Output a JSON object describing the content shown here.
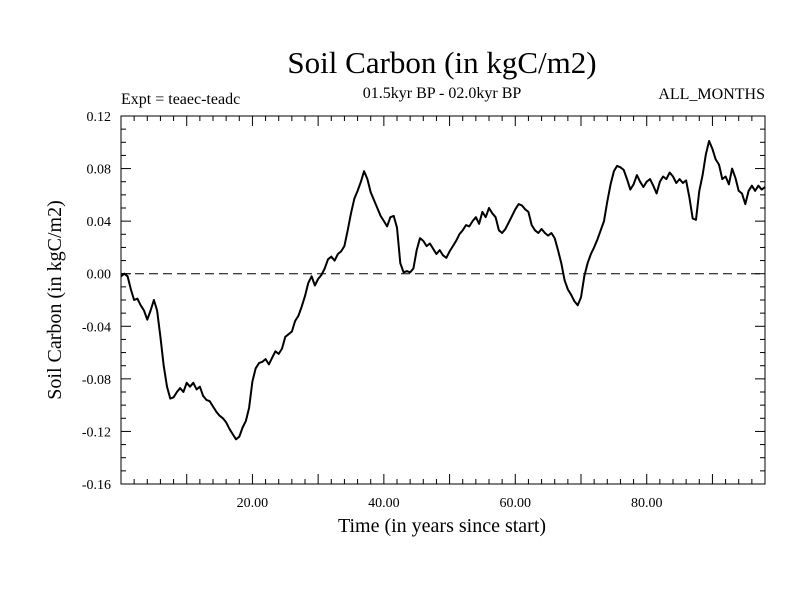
{
  "chart_data": {
    "type": "line",
    "title": "Soil Carbon (in kgC/m2)",
    "subtitle": "01.5kyr BP - 02.0kyr BP",
    "left_note": "Expt = teaec-teadc",
    "right_note": "ALL_MONTHS",
    "xlabel": "Time (in years since start)",
    "ylabel": "Soil Carbon (in kgC/m2)",
    "xlim": [
      0,
      98
    ],
    "ylim": [
      -0.16,
      0.12
    ],
    "x_ticks": [
      20,
      40,
      60,
      80
    ],
    "x_tick_labels": [
      "20.00",
      "40.00",
      "60.00",
      "80.00"
    ],
    "y_ticks": [
      -0.16,
      -0.12,
      -0.08,
      -0.04,
      0.0,
      0.04,
      0.08,
      0.12
    ],
    "y_tick_labels": [
      "-0.16",
      "-0.12",
      "-0.08",
      "-0.04",
      "0.00",
      "0.04",
      "0.08",
      "0.12"
    ],
    "reference_line": 0.0,
    "grid": false,
    "series": [
      {
        "color": "#000000",
        "points": [
          [
            0.0,
            -0.002
          ],
          [
            0.5,
            0.0
          ],
          [
            1.0,
            -0.002
          ],
          [
            1.5,
            -0.012
          ],
          [
            2.0,
            -0.02
          ],
          [
            2.5,
            -0.019
          ],
          [
            3.0,
            -0.024
          ],
          [
            3.5,
            -0.028
          ],
          [
            4.0,
            -0.035
          ],
          [
            4.5,
            -0.028
          ],
          [
            5.0,
            -0.02
          ],
          [
            5.5,
            -0.028
          ],
          [
            6.0,
            -0.048
          ],
          [
            6.5,
            -0.07
          ],
          [
            7.0,
            -0.086
          ],
          [
            7.5,
            -0.095
          ],
          [
            8.0,
            -0.094
          ],
          [
            8.5,
            -0.09
          ],
          [
            9.0,
            -0.087
          ],
          [
            9.5,
            -0.09
          ],
          [
            10.0,
            -0.083
          ],
          [
            10.5,
            -0.086
          ],
          [
            11.0,
            -0.083
          ],
          [
            11.5,
            -0.088
          ],
          [
            12.0,
            -0.086
          ],
          [
            12.5,
            -0.093
          ],
          [
            13.0,
            -0.096
          ],
          [
            13.5,
            -0.097
          ],
          [
            14.0,
            -0.101
          ],
          [
            14.5,
            -0.105
          ],
          [
            15.0,
            -0.108
          ],
          [
            15.5,
            -0.11
          ],
          [
            16.0,
            -0.113
          ],
          [
            16.5,
            -0.118
          ],
          [
            17.0,
            -0.122
          ],
          [
            17.5,
            -0.126
          ],
          [
            18.0,
            -0.124
          ],
          [
            18.5,
            -0.117
          ],
          [
            19.0,
            -0.112
          ],
          [
            19.5,
            -0.102
          ],
          [
            20.0,
            -0.082
          ],
          [
            20.5,
            -0.072
          ],
          [
            21.0,
            -0.068
          ],
          [
            21.5,
            -0.067
          ],
          [
            22.0,
            -0.065
          ],
          [
            22.5,
            -0.069
          ],
          [
            23.0,
            -0.064
          ],
          [
            23.5,
            -0.059
          ],
          [
            24.0,
            -0.061
          ],
          [
            24.5,
            -0.057
          ],
          [
            25.0,
            -0.048
          ],
          [
            25.5,
            -0.046
          ],
          [
            26.0,
            -0.044
          ],
          [
            26.5,
            -0.036
          ],
          [
            27.0,
            -0.032
          ],
          [
            27.5,
            -0.025
          ],
          [
            28.0,
            -0.017
          ],
          [
            28.5,
            -0.007
          ],
          [
            29.0,
            -0.002
          ],
          [
            29.5,
            -0.009
          ],
          [
            30.0,
            -0.004
          ],
          [
            30.5,
            -0.001
          ],
          [
            31.0,
            0.004
          ],
          [
            31.5,
            0.011
          ],
          [
            32.0,
            0.013
          ],
          [
            32.5,
            0.01
          ],
          [
            33.0,
            0.015
          ],
          [
            33.5,
            0.017
          ],
          [
            34.0,
            0.021
          ],
          [
            34.5,
            0.033
          ],
          [
            35.0,
            0.046
          ],
          [
            35.5,
            0.057
          ],
          [
            36.0,
            0.063
          ],
          [
            36.5,
            0.07
          ],
          [
            37.0,
            0.078
          ],
          [
            37.5,
            0.072
          ],
          [
            38.0,
            0.062
          ],
          [
            38.5,
            0.056
          ],
          [
            39.0,
            0.05
          ],
          [
            39.5,
            0.044
          ],
          [
            40.0,
            0.04
          ],
          [
            40.5,
            0.036
          ],
          [
            41.0,
            0.043
          ],
          [
            41.5,
            0.044
          ],
          [
            42.0,
            0.035
          ],
          [
            42.5,
            0.008
          ],
          [
            43.0,
            0.001
          ],
          [
            43.5,
            0.002
          ],
          [
            44.0,
            0.001
          ],
          [
            44.5,
            0.004
          ],
          [
            45.0,
            0.018
          ],
          [
            45.5,
            0.027
          ],
          [
            46.0,
            0.025
          ],
          [
            46.5,
            0.021
          ],
          [
            47.0,
            0.023
          ],
          [
            47.5,
            0.019
          ],
          [
            48.0,
            0.015
          ],
          [
            48.5,
            0.018
          ],
          [
            49.0,
            0.014
          ],
          [
            49.5,
            0.012
          ],
          [
            50.0,
            0.017
          ],
          [
            50.5,
            0.021
          ],
          [
            51.0,
            0.025
          ],
          [
            51.5,
            0.03
          ],
          [
            52.0,
            0.033
          ],
          [
            52.5,
            0.037
          ],
          [
            53.0,
            0.036
          ],
          [
            53.5,
            0.04
          ],
          [
            54.0,
            0.043
          ],
          [
            54.5,
            0.038
          ],
          [
            55.0,
            0.047
          ],
          [
            55.5,
            0.043
          ],
          [
            56.0,
            0.05
          ],
          [
            56.5,
            0.046
          ],
          [
            57.0,
            0.043
          ],
          [
            57.5,
            0.033
          ],
          [
            58.0,
            0.031
          ],
          [
            58.5,
            0.034
          ],
          [
            59.0,
            0.039
          ],
          [
            59.5,
            0.044
          ],
          [
            60.0,
            0.049
          ],
          [
            60.5,
            0.053
          ],
          [
            61.0,
            0.052
          ],
          [
            61.5,
            0.049
          ],
          [
            62.0,
            0.047
          ],
          [
            62.5,
            0.037
          ],
          [
            63.0,
            0.033
          ],
          [
            63.5,
            0.031
          ],
          [
            64.0,
            0.034
          ],
          [
            64.5,
            0.031
          ],
          [
            65.0,
            0.029
          ],
          [
            65.5,
            0.031
          ],
          [
            66.0,
            0.027
          ],
          [
            66.5,
            0.018
          ],
          [
            67.0,
            0.008
          ],
          [
            67.5,
            -0.005
          ],
          [
            68.0,
            -0.012
          ],
          [
            68.5,
            -0.016
          ],
          [
            69.0,
            -0.021
          ],
          [
            69.5,
            -0.024
          ],
          [
            70.0,
            -0.018
          ],
          [
            70.5,
            -0.002
          ],
          [
            71.0,
            0.008
          ],
          [
            71.5,
            0.015
          ],
          [
            72.0,
            0.02
          ],
          [
            72.5,
            0.026
          ],
          [
            73.0,
            0.033
          ],
          [
            73.5,
            0.04
          ],
          [
            74.0,
            0.055
          ],
          [
            74.5,
            0.068
          ],
          [
            75.0,
            0.078
          ],
          [
            75.5,
            0.082
          ],
          [
            76.0,
            0.081
          ],
          [
            76.5,
            0.079
          ],
          [
            77.0,
            0.072
          ],
          [
            77.5,
            0.064
          ],
          [
            78.0,
            0.068
          ],
          [
            78.5,
            0.075
          ],
          [
            79.0,
            0.07
          ],
          [
            79.5,
            0.066
          ],
          [
            80.0,
            0.07
          ],
          [
            80.5,
            0.072
          ],
          [
            81.0,
            0.067
          ],
          [
            81.5,
            0.061
          ],
          [
            82.0,
            0.07
          ],
          [
            82.5,
            0.074
          ],
          [
            83.0,
            0.072
          ],
          [
            83.5,
            0.077
          ],
          [
            84.0,
            0.074
          ],
          [
            84.5,
            0.069
          ],
          [
            85.0,
            0.072
          ],
          [
            85.5,
            0.069
          ],
          [
            86.0,
            0.071
          ],
          [
            86.5,
            0.058
          ],
          [
            87.0,
            0.042
          ],
          [
            87.5,
            0.041
          ],
          [
            88.0,
            0.063
          ],
          [
            88.5,
            0.075
          ],
          [
            89.0,
            0.091
          ],
          [
            89.5,
            0.101
          ],
          [
            90.0,
            0.095
          ],
          [
            90.5,
            0.087
          ],
          [
            91.0,
            0.083
          ],
          [
            91.5,
            0.072
          ],
          [
            92.0,
            0.074
          ],
          [
            92.5,
            0.068
          ],
          [
            93.0,
            0.08
          ],
          [
            93.5,
            0.073
          ],
          [
            94.0,
            0.063
          ],
          [
            94.5,
            0.061
          ],
          [
            95.0,
            0.053
          ],
          [
            95.5,
            0.063
          ],
          [
            96.0,
            0.067
          ],
          [
            96.5,
            0.063
          ],
          [
            97.0,
            0.067
          ],
          [
            97.5,
            0.064
          ],
          [
            98.0,
            0.066
          ]
        ]
      }
    ]
  }
}
